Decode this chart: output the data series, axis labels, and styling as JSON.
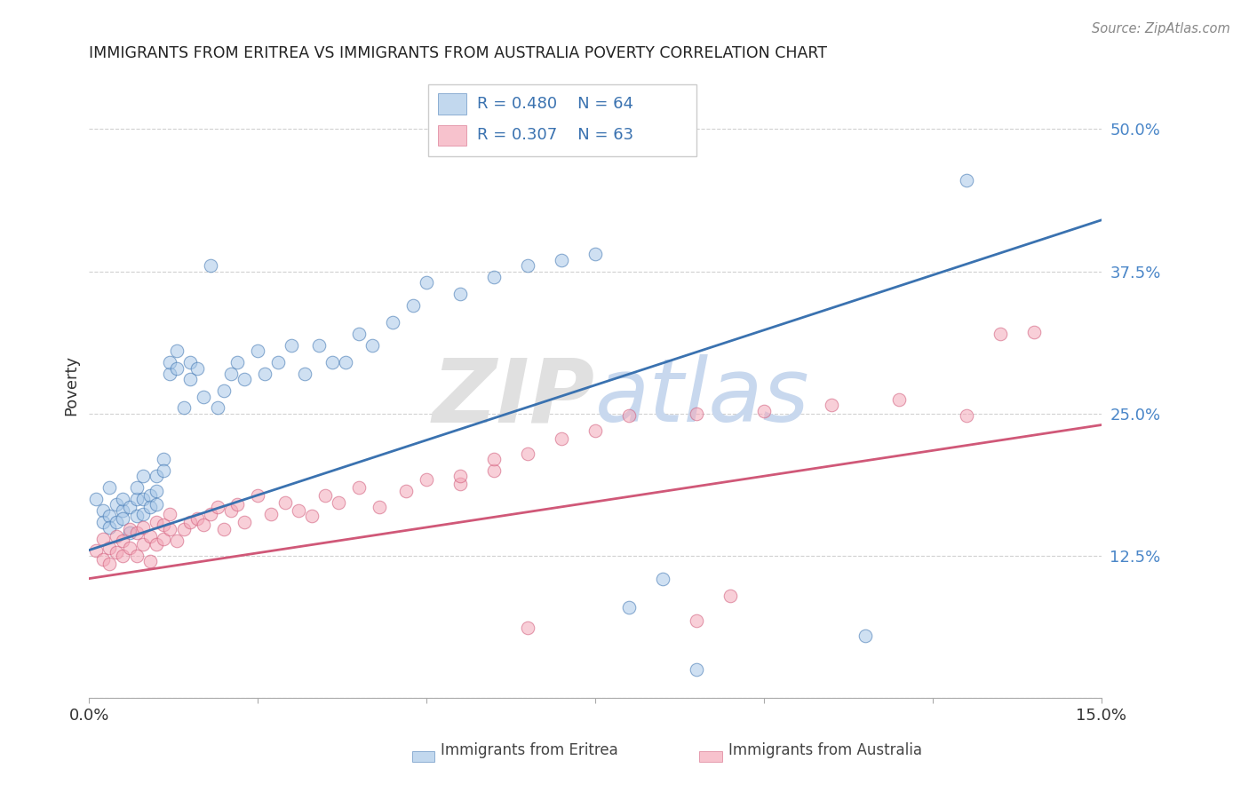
{
  "title": "IMMIGRANTS FROM ERITREA VS IMMIGRANTS FROM AUSTRALIA POVERTY CORRELATION CHART",
  "source": "Source: ZipAtlas.com",
  "ylabel": "Poverty",
  "xlim": [
    0.0,
    0.15
  ],
  "ylim": [
    0.0,
    0.55
  ],
  "yticks": [
    0.0,
    0.125,
    0.25,
    0.375,
    0.5
  ],
  "ytick_labels": [
    "",
    "12.5%",
    "25.0%",
    "37.5%",
    "50.0%"
  ],
  "color_eritrea": "#a8c8e8",
  "color_australia": "#f4a8b8",
  "color_line_eritrea": "#3a72b0",
  "color_line_australia": "#d05878",
  "watermark_zip": "ZIP",
  "watermark_atlas": "atlas",
  "eritrea_x": [
    0.001,
    0.002,
    0.002,
    0.003,
    0.003,
    0.003,
    0.004,
    0.004,
    0.005,
    0.005,
    0.005,
    0.006,
    0.006,
    0.007,
    0.007,
    0.007,
    0.008,
    0.008,
    0.008,
    0.009,
    0.009,
    0.01,
    0.01,
    0.01,
    0.011,
    0.011,
    0.012,
    0.012,
    0.013,
    0.013,
    0.014,
    0.015,
    0.015,
    0.016,
    0.017,
    0.018,
    0.019,
    0.02,
    0.021,
    0.022,
    0.023,
    0.025,
    0.026,
    0.028,
    0.03,
    0.032,
    0.034,
    0.036,
    0.038,
    0.04,
    0.042,
    0.045,
    0.048,
    0.05,
    0.055,
    0.06,
    0.065,
    0.07,
    0.075,
    0.08,
    0.085,
    0.09,
    0.115,
    0.13
  ],
  "eritrea_y": [
    0.175,
    0.165,
    0.155,
    0.185,
    0.16,
    0.15,
    0.17,
    0.155,
    0.165,
    0.175,
    0.158,
    0.168,
    0.145,
    0.175,
    0.185,
    0.16,
    0.175,
    0.162,
    0.195,
    0.178,
    0.168,
    0.182,
    0.195,
    0.17,
    0.21,
    0.2,
    0.285,
    0.295,
    0.29,
    0.305,
    0.255,
    0.295,
    0.28,
    0.29,
    0.265,
    0.38,
    0.255,
    0.27,
    0.285,
    0.295,
    0.28,
    0.305,
    0.285,
    0.295,
    0.31,
    0.285,
    0.31,
    0.295,
    0.295,
    0.32,
    0.31,
    0.33,
    0.345,
    0.365,
    0.355,
    0.37,
    0.38,
    0.385,
    0.39,
    0.08,
    0.105,
    0.025,
    0.055,
    0.455
  ],
  "australia_x": [
    0.001,
    0.002,
    0.002,
    0.003,
    0.003,
    0.004,
    0.004,
    0.005,
    0.005,
    0.006,
    0.006,
    0.007,
    0.007,
    0.008,
    0.008,
    0.009,
    0.009,
    0.01,
    0.01,
    0.011,
    0.011,
    0.012,
    0.012,
    0.013,
    0.014,
    0.015,
    0.016,
    0.017,
    0.018,
    0.019,
    0.02,
    0.021,
    0.022,
    0.023,
    0.025,
    0.027,
    0.029,
    0.031,
    0.033,
    0.035,
    0.037,
    0.04,
    0.043,
    0.047,
    0.05,
    0.055,
    0.06,
    0.065,
    0.07,
    0.075,
    0.08,
    0.09,
    0.1,
    0.11,
    0.12,
    0.13,
    0.135,
    0.14,
    0.055,
    0.06,
    0.065,
    0.09,
    0.095
  ],
  "australia_y": [
    0.13,
    0.122,
    0.14,
    0.118,
    0.132,
    0.128,
    0.142,
    0.125,
    0.138,
    0.132,
    0.148,
    0.125,
    0.145,
    0.135,
    0.15,
    0.12,
    0.142,
    0.135,
    0.155,
    0.14,
    0.152,
    0.148,
    0.162,
    0.138,
    0.148,
    0.155,
    0.158,
    0.152,
    0.162,
    0.168,
    0.148,
    0.165,
    0.17,
    0.155,
    0.178,
    0.162,
    0.172,
    0.165,
    0.16,
    0.178,
    0.172,
    0.185,
    0.168,
    0.182,
    0.192,
    0.188,
    0.2,
    0.215,
    0.228,
    0.235,
    0.248,
    0.25,
    0.252,
    0.258,
    0.262,
    0.248,
    0.32,
    0.322,
    0.195,
    0.21,
    0.062,
    0.068,
    0.09
  ]
}
